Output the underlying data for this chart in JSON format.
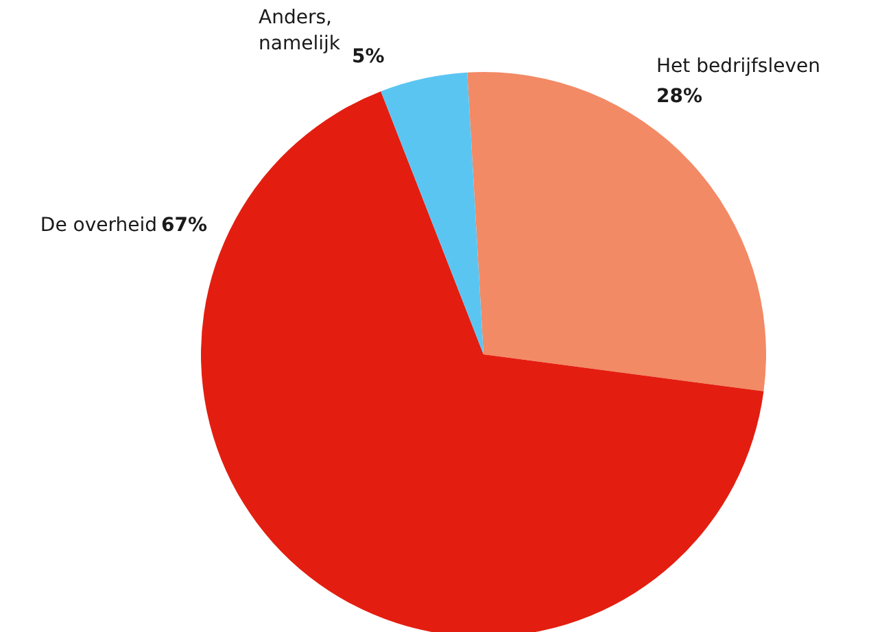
{
  "chart_data": {
    "type": "pie",
    "categories": [
      "Het bedrijfsleven",
      "De overheid",
      "Anders, namelijk"
    ],
    "values": [
      28,
      67,
      5
    ],
    "value_labels": [
      "28%",
      "67%",
      "5%"
    ],
    "colors": [
      "#f28a65",
      "#e31e10",
      "#5bc5f2"
    ]
  }
}
